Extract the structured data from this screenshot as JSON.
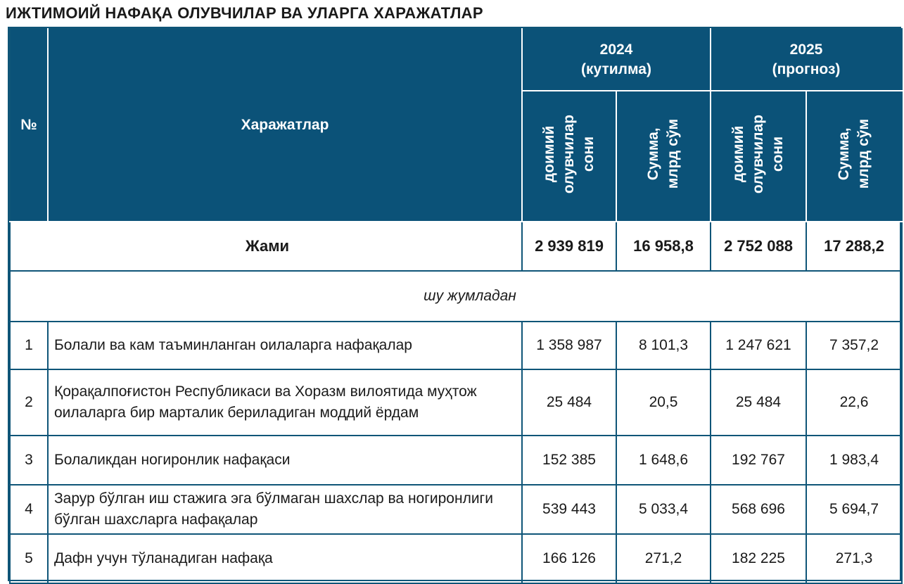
{
  "title": "ИЖТИМОИЙ НАФАҚА ОЛУВЧИЛАР ВА УЛАРГА ХАРАЖАТЛАР",
  "header": {
    "no": "№",
    "expenses": "Харажатлар",
    "year1": "2024",
    "year1_note": "(кутилма)",
    "year2": "2025",
    "year2_note": "(прогноз)",
    "col_recipients": "доимий\nолувчилар\nсони",
    "col_amount": "Сумма,\nмлрд сўм"
  },
  "total": {
    "label": "Жами",
    "r2024": "2 939 819",
    "s2024": "16 958,8",
    "r2025": "2 752 088",
    "s2025": "17 288,2"
  },
  "subtitle": "шу жумладан",
  "rows": [
    {
      "no": "1",
      "name": "Болали ва кам таъминланган оилаларга нафақалар",
      "r2024": "1 358 987",
      "s2024": "8 101,3",
      "r2025": "1 247 621",
      "s2025": "7 357,2"
    },
    {
      "no": "2",
      "name": "Қорақалпоғистон Республикаси ва Хоразм вилоятида муҳтож оилаларга бир марталик бериладиган моддий ёрдам",
      "r2024": "25 484",
      "s2024": "20,5",
      "r2025": "25 484",
      "s2025": "22,6"
    },
    {
      "no": "3",
      "name": "Болаликдан ногиронлик нафақаси",
      "r2024": "152 385",
      "s2024": "1 648,6",
      "r2025": "192 767",
      "s2025": "1 983,4"
    },
    {
      "no": "4",
      "name": "Зарур бўлган иш стажига эга бўлмаган шахслар ва ногиронлиги бўлган шахсларга нафақалар",
      "r2024": "539 443",
      "s2024": "5 033,4",
      "r2025": "568 696",
      "s2025": "5 694,7"
    },
    {
      "no": "5",
      "name": "Дафн учун тўланадиган нафақа",
      "r2024": "166 126",
      "s2024": "271,2",
      "r2025": "182 225",
      "s2025": "271,3"
    }
  ]
}
